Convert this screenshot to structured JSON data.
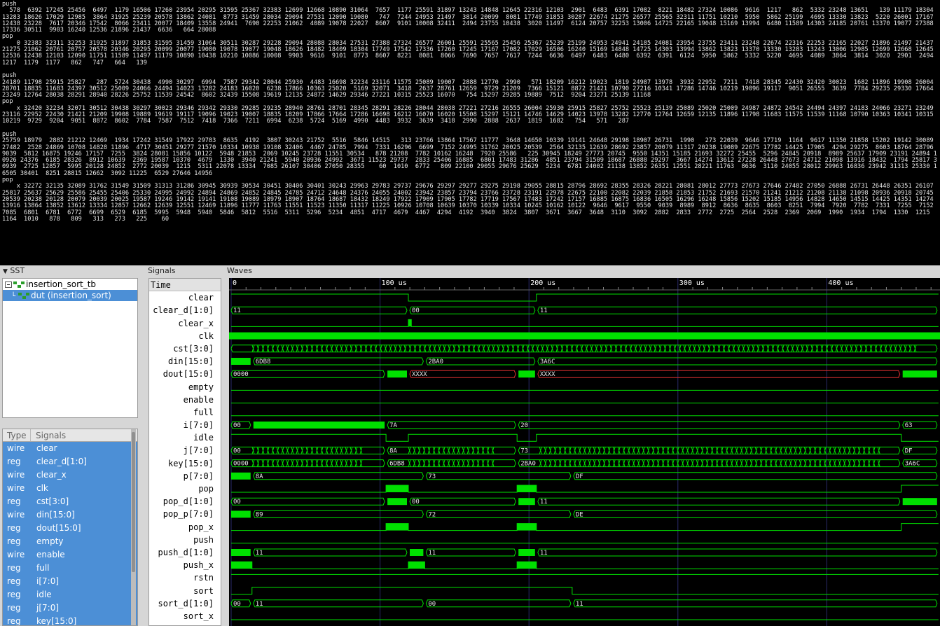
{
  "terminal": [
    {
      "kw": "push",
      "text": "  578  6392 17245 25456  6497  1179 16506 17260 23954 20295 31595 25367 32383 12699 12668 10890 31064  7657  1177 25591 31897 13243 14848 12645 22316 12103  2901  6483  6391 17082  8221 18482 27324 10086  9616  1217   862  5332 23248 13651   139 11179 18304 13283 18626 17029 12985  3864 31925 25239 20578 13862 24081  8773 31459 28034 29094 27531 12090 19080   747  7244 24953 21497  3814 20099  8081 17749 31853 30287 22674 21275 26577 25565 32311 11751 10210  5950  5862 25199  4695 13330 13823  5220 26001 17167 12438 23228  7617 20346 17542  8066 23411 20077 18409 13558 24941  7690 22253 21062  4089 19078 22027  8607  9101 10008 32411  2494 23755 10438  3020 11497  6124 20757 32253 13006 14725 22165 19048 15169 13994  6480 11589 14303 24185 20761 13370 19077 27388 17336 30511  9903 16240 12536 21896 21437  6636   664 28088"
    },
    {
      "kw": "pop",
      "text": "    0 32383 32311 32253 31925 31897 31853 31595 31459 31064 30511 30287 29228 29094 28088 28034 27531 27388 27324 26577 26001 25591 25565 25456 25367 25239 25199 24953 24941 24185 24081 23954 23755 23411 23248 22674 22316 22253 22165 22027 21896 21497 21437 21275 21062 20761 20757 20578 20346 20295 20099 20077 19080 19078 19077 19048 18626 18482 18409 18304 17749 17542 17336 17260 17245 17167 17082 17029 16506 16240 15169 14848 14725 14303 13994 13862 13823 13370 13330 13283 13243 13006 12985 12699 12668 12645 12536 12438 12103 12090 11751 11589 11497 11179 10890 10438 10210 10086 10008  9903  9616  9101  8773  8607  8221  8081  8066  7690  7657  7617  7244  6636  6497  6483  6480  6392  6391  6124  5950  5862  5332  5220  4695  4089  3864  3814  3020  2901  2494  1217  1179  1177   862   747   664   139"
    },
    {
      "kw": "push",
      "text": "24189 11798 25915 25827   287  5724 30438  4990 30297  6994  7587 29342 28044 25930  4483 16698 32234 23116 11575 25089 19007  2888 12770  2990   571 18209 16212 19023  1819 24987 13978  3932 22952  7211  7418 28345 22430 32420 30023  1682 11896 19908 26004 28701 18835 11683 24397 30512 25009 24066 24494 14023 13282 24183 16020  6238 17866 10363 25020  5169 32071  3418  2637 28761 12659  9729 21209  7366 15121  8872 21421 10790 27216 10341 17286 14746 10219 19096 19117  9051 26555  3639  7784 29235 29330 17664 23249 12764 28038 28291 28940 28226 25752 11539 24542  8602 32439 15508 19619 12135 24872 14629 29346 27221 10315 25523 16070   754 15297 29285 19889  7512  9204 23271 25139 11168"
    },
    {
      "kw": "pop",
      "text": "    x 32420 32234 32071 30512 30438 30297 30023 29346 29342 29330 29285 29235 28940 28761 28701 28345 28291 28226 28044 28038 27221 27216 26555 26004 25930 25915 25827 25752 25523 25139 25089 25020 25009 24987 24872 24542 24494 24397 24183 24066 23271 23249 23116 22952 22430 21421 21209 19908 19889 19619 19117 19096 19023 19007 18835 18209 17866 17664 17286 16698 16212 16070 16020 15508 15297 15121 14746 14629 14023 13978 13282 12770 12764 12659 12135 11896 11798 11683 11575 11539 11168 10790 10363 10341 10315 10219  9729  9204  9051  8872  8602  7784  7587  7512  7418  7366  7211  6994  6238  5724  5169  4990  4483  3932  3639  3418  2990  2888  2637  1819  1682   754   571   287"
    },
    {
      "kw": "push",
      "text": "25759 18979  2882 21212 12469  1934 17242 31549 17922 29783  8635  4192  3807 30243 21752  5516  5846 14515   313 23766 13864 17567 11777  3648 14650 10339 19141 24648 29198 18907 26731  1990   273 22039  9646 17719  1164  9617 11350 21858 15202 19142 30089 27482  2528 24869 10708 14828 11896  4717 30451 29277 21570 10334 10938 19108 32406  4467 24785  7994  7331 16296  6699  7152 24995 31762 20025 20539  2564 32135 12639 28692 23857 20079 11317 20238 19089 22675 17782 14425 17905  4294 29275  8603 18764 28796  9039  5812 16875 19246 17157  7255  3824 28081 15856 10122  5948 21853  2069 10245 23728 11551 30534   878 21208  7782 10162 16248  7920 25586   225 30945 18249 27773 20745  9550 14351 15185 21693 32272 25455  5296 24845 20918  8989 25637 17909 23191 24894 10926 24376  6185 28326  8912 10639  2369 19587 10370  4679  1330  3940 21241  5940 20936 24992  3671 11523 29737  2833 25406 16885  6801 17483 31286  4851 23794 31509 18687 26888 29297  3667 14274 13612 27228 26448 27673 24712 21098 13916 18432  1794 25817 30939  2725 12857  5995 20128 24852  2772 20039  1215  5311 22078 13334  7085 26107 30406 27050 28355    60  1010  6772   809 22100 29055 29676 25629  5234  6781 24002 21138 13852 26351 12551 28221 11763  8636  3110 24055 28012 29963 16836 23942 31313 25330 16505 30401  8251 28815 12662  3092 11225  6529 27646 14956"
    },
    {
      "kw": "pop",
      "text": "    x 32272 32135 32089 31762 31549 31509 31313 31286 30945 30939 30534 30451 30406 30401 30243 29963 29783 29737 29676 29297 29277 29275 29198 29055 28815 28796 28692 28355 28326 28221 28081 28012 27773 27673 27646 27482 27050 26888 26731 26448 26351 26107 25817 25637 25629 25586 25455 25406 25330 24995 24992 24894 24869 24852 24845 24785 24712 24648 24376 24055 24002 23942 23857 23794 23766 23728 23191 22978 22675 22100 22082 22039 21858 21853 21752 21693 21570 21241 21212 21208 21138 21098 20936 20918 20745 20539 20238 20128 20079 20039 20025 19587 19246 19142 19141 19108 19089 18979 18907 18764 18687 18432 18249 17922 17909 17905 17782 17719 17567 17483 17242 17157 16885 16875 16836 16505 16296 16248 15856 15202 15185 14956 14828 14650 14515 14425 14351 14274 13916 13864 13852 13612 13334 12857 12662 12639 12551 12469 11896 11777 11763 11551 11523 11350 11317 11225 10926 10708 10639 10370 10339 10334 10245 10162 10122  9646  9617  9550  9039  8989  8912  8636  8635  8603  8251  7994  7920  7782  7331  7255  7152  7085  6801  6781  6772  6699  6529  6185  5995  5948  5940  5846  5812  5516  5311  5296  5234  4851  4717  4679  4467  4294  4192  3940  3824  3807  3671  3667  3648  3110  3092  2882  2833  2772  2725  2564  2528  2369  2069  1990  1934  1794  1330  1215  1164  1010   878   809   313   273   225    60"
    }
  ],
  "sst": {
    "title": "SST",
    "tree": [
      {
        "label": "insertion_sort_tb",
        "selected": false
      },
      {
        "label": "dut  (insertion_sort)",
        "selected": true
      }
    ],
    "list_header": {
      "type": "Type",
      "signals": "Signals"
    },
    "list": [
      {
        "type": "wire",
        "name": "clear"
      },
      {
        "type": "reg",
        "name": "clear_d[1:0]"
      },
      {
        "type": "wire",
        "name": "clear_x"
      },
      {
        "type": "wire",
        "name": "clk"
      },
      {
        "type": "reg",
        "name": "cst[3:0]"
      },
      {
        "type": "wire",
        "name": "din[15:0]"
      },
      {
        "type": "reg",
        "name": "dout[15:0]"
      },
      {
        "type": "reg",
        "name": "empty"
      },
      {
        "type": "wire",
        "name": "enable"
      },
      {
        "type": "reg",
        "name": "full"
      },
      {
        "type": "reg",
        "name": "i[7:0]"
      },
      {
        "type": "reg",
        "name": "idle"
      },
      {
        "type": "reg",
        "name": "j[7:0]"
      },
      {
        "type": "reg",
        "name": "key[15:0]"
      }
    ]
  },
  "signals_pane": {
    "title": "Signals",
    "time_label": "Time",
    "names": [
      "clear",
      "clear_d[1:0]",
      "clear_x",
      "clk",
      "cst[3:0]",
      "din[15:0]",
      "dout[15:0]",
      "empty",
      "enable",
      "full",
      "i[7:0]",
      "idle",
      "j[7:0]",
      "key[15:0]",
      "p[7:0]",
      "pop",
      "pop_d[1:0]",
      "pop_p[7:0]",
      "pop_x",
      "push",
      "push_d[1:0]",
      "push_x",
      "rstn",
      "sort",
      "sort_d[1:0]",
      "sort_x"
    ]
  },
  "waves": {
    "title": "Waves",
    "ticks": [
      {
        "t": 0,
        "label": "0"
      },
      {
        "t": 100,
        "label": "100 us"
      },
      {
        "t": 200,
        "label": "200 us"
      },
      {
        "t": 300,
        "label": "300 us"
      },
      {
        "t": 400,
        "label": "400 us"
      }
    ],
    "colors": {
      "wave": "#00e000",
      "bus_fill": "#00e000",
      "x_state": "#e03030",
      "grid": "#2a2a6a",
      "bg": "#000000"
    },
    "rows": [
      {
        "name": "clear",
        "kind": "bit",
        "segs": [
          [
            0,
            119,
            1
          ],
          [
            119,
            205,
            0
          ],
          [
            205,
            475,
            1
          ]
        ]
      },
      {
        "name": "clear_d[1:0]",
        "kind": "bus",
        "segs": [
          [
            0,
            119,
            "11"
          ],
          [
            119,
            205,
            "00"
          ],
          [
            205,
            475,
            "11"
          ]
        ]
      },
      {
        "name": "clear_x",
        "kind": "bit",
        "segs": [
          [
            0,
            119,
            0
          ],
          [
            119,
            121,
            1
          ],
          [
            121,
            475,
            0
          ]
        ]
      },
      {
        "name": "clk",
        "kind": "clock"
      },
      {
        "name": "cst[3:0]",
        "kind": "busy",
        "segs": [
          [
            0,
            475,
            ""
          ]
        ]
      },
      {
        "name": "din[15:0]",
        "kind": "bus",
        "segs": [
          [
            0,
            14,
            ""
          ],
          [
            14,
            130,
            "6DB8"
          ],
          [
            130,
            205,
            "2BA0"
          ],
          [
            205,
            475,
            "3A6C"
          ]
        ]
      },
      {
        "name": "dout[15:0]",
        "kind": "bus",
        "segs": [
          [
            0,
            104,
            "0000"
          ],
          [
            104,
            119,
            ""
          ],
          [
            119,
            192,
            "XXXX",
            "x"
          ],
          [
            192,
            205,
            ""
          ],
          [
            205,
            450,
            "XXXX",
            "x"
          ],
          [
            450,
            475,
            ""
          ]
        ]
      },
      {
        "name": "empty",
        "kind": "bit",
        "segs": [
          [
            0,
            475,
            0
          ]
        ]
      },
      {
        "name": "enable",
        "kind": "bit",
        "segs": [
          [
            0,
            475,
            0
          ]
        ]
      },
      {
        "name": "full",
        "kind": "bit",
        "segs": [
          [
            0,
            475,
            0
          ]
        ]
      },
      {
        "name": "i[7:0]",
        "kind": "bus",
        "segs": [
          [
            0,
            14,
            "00"
          ],
          [
            14,
            104,
            ""
          ],
          [
            104,
            192,
            "7A"
          ],
          [
            192,
            450,
            "20"
          ],
          [
            450,
            475,
            "63"
          ]
        ]
      },
      {
        "name": "idle",
        "kind": "bit",
        "segs": [
          [
            0,
            104,
            1
          ],
          [
            104,
            119,
            0
          ],
          [
            119,
            192,
            1
          ],
          [
            192,
            205,
            0
          ],
          [
            205,
            450,
            1
          ],
          [
            450,
            475,
            0
          ]
        ]
      },
      {
        "name": "j[7:0]",
        "kind": "busy",
        "segs": [
          [
            0,
            104,
            "00"
          ],
          [
            104,
            192,
            "8A"
          ],
          [
            192,
            450,
            "73"
          ],
          [
            450,
            475,
            "DF"
          ]
        ]
      },
      {
        "name": "key[15:0]",
        "kind": "busy",
        "segs": [
          [
            0,
            104,
            "0000"
          ],
          [
            104,
            192,
            "6DB8"
          ],
          [
            192,
            450,
            "2BA0"
          ],
          [
            450,
            475,
            "3A6C"
          ]
        ]
      },
      {
        "name": "p[7:0]",
        "kind": "bus",
        "segs": [
          [
            0,
            14,
            ""
          ],
          [
            14,
            130,
            "8A"
          ],
          [
            130,
            229,
            "73"
          ],
          [
            229,
            475,
            "DF"
          ]
        ]
      },
      {
        "name": "pop",
        "kind": "bit",
        "segs": [
          [
            0,
            104,
            0
          ],
          [
            104,
            119,
            1
          ],
          [
            119,
            192,
            0
          ],
          [
            192,
            205,
            1
          ],
          [
            205,
            450,
            0
          ],
          [
            450,
            475,
            1
          ]
        ]
      },
      {
        "name": "pop_d[1:0]",
        "kind": "bus",
        "segs": [
          [
            0,
            104,
            "00"
          ],
          [
            104,
            119,
            ""
          ],
          [
            119,
            192,
            "00"
          ],
          [
            192,
            205,
            ""
          ],
          [
            205,
            450,
            "11"
          ],
          [
            450,
            475,
            ""
          ]
        ]
      },
      {
        "name": "pop_p[7:0]",
        "kind": "bus",
        "segs": [
          [
            0,
            14,
            ""
          ],
          [
            14,
            130,
            "89"
          ],
          [
            130,
            229,
            "72"
          ],
          [
            229,
            475,
            "DE"
          ]
        ]
      },
      {
        "name": "pop_x",
        "kind": "bit",
        "segs": [
          [
            0,
            104,
            0
          ],
          [
            104,
            119,
            1
          ],
          [
            119,
            192,
            0
          ],
          [
            192,
            205,
            1
          ],
          [
            205,
            450,
            0
          ],
          [
            450,
            475,
            1
          ]
        ]
      },
      {
        "name": "push",
        "kind": "bit",
        "segs": [
          [
            0,
            475,
            0
          ]
        ]
      },
      {
        "name": "push_d[1:0]",
        "kind": "bus",
        "segs": [
          [
            0,
            14,
            ""
          ],
          [
            14,
            119,
            "11"
          ],
          [
            119,
            130,
            ""
          ],
          [
            130,
            192,
            "11"
          ],
          [
            192,
            205,
            ""
          ],
          [
            205,
            475,
            "11"
          ]
        ]
      },
      {
        "name": "push_x",
        "kind": "bit",
        "segs": [
          [
            0,
            14,
            1
          ],
          [
            14,
            119,
            0
          ],
          [
            119,
            130,
            1
          ],
          [
            130,
            192,
            0
          ],
          [
            192,
            205,
            1
          ],
          [
            205,
            475,
            0
          ]
        ]
      },
      {
        "name": "rstn",
        "kind": "bit",
        "segs": [
          [
            0,
            475,
            1
          ]
        ]
      },
      {
        "name": "sort",
        "kind": "bit",
        "segs": [
          [
            0,
            14,
            0
          ],
          [
            14,
            229,
            1
          ],
          [
            229,
            475,
            0
          ]
        ]
      },
      {
        "name": "sort_d[1:0]",
        "kind": "bus",
        "segs": [
          [
            0,
            14,
            "00"
          ],
          [
            14,
            130,
            "11"
          ],
          [
            130,
            229,
            "00"
          ],
          [
            229,
            475,
            "11"
          ]
        ]
      },
      {
        "name": "sort_x",
        "kind": "bit",
        "segs": [
          [
            0,
            475,
            0
          ]
        ]
      }
    ]
  }
}
